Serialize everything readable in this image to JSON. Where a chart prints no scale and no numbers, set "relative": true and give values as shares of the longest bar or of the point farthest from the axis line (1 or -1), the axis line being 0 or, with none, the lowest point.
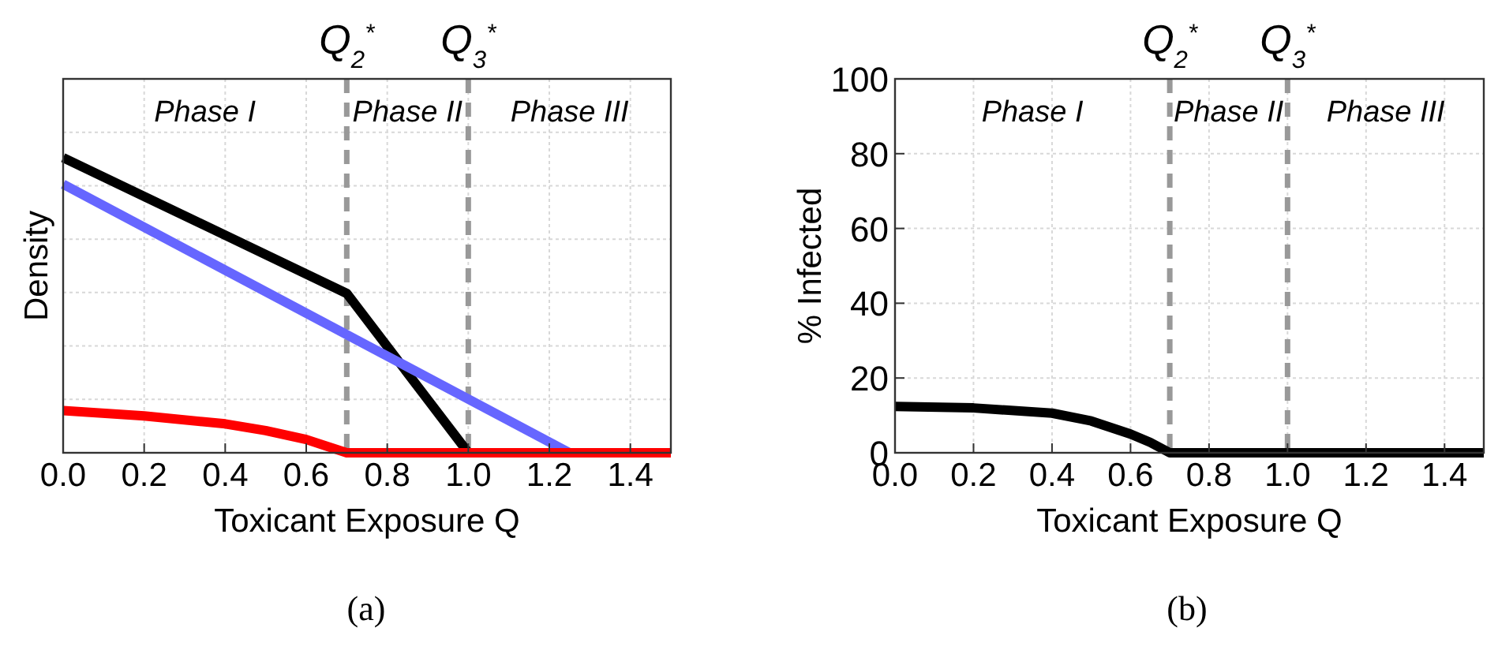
{
  "chart_data": [
    {
      "type": "line",
      "title": "(a)",
      "xlabel": "Toxicant Exposure Q",
      "ylabel": "Density",
      "relative": true,
      "xlim": [
        0,
        1.5
      ],
      "xticks": [
        {
          "value": 0,
          "label": "0.0"
        },
        {
          "value": 0.2,
          "label": "0.2"
        },
        {
          "value": 0.4,
          "label": "0.4"
        },
        {
          "value": 0.6,
          "label": "0.6"
        },
        {
          "value": 0.8,
          "label": "0.8"
        },
        {
          "value": 1,
          "label": "1.0"
        },
        {
          "value": 1.2,
          "label": "1.2"
        },
        {
          "value": 1.4,
          "label": "1.4"
        }
      ],
      "grid": true,
      "marker": "none",
      "line_style": "solid",
      "series": [
        {
          "color": "#000000",
          "x": [
            0,
            0.7,
            1.0,
            1.5
          ],
          "values": [
            1,
            0.54,
            0,
            0
          ]
        },
        {
          "color": "#6666ff",
          "x": [
            0,
            1.25
          ],
          "values": [
            0.91,
            0
          ]
        },
        {
          "color": "#ff0000",
          "x": [
            0,
            0.2,
            0.4,
            0.5,
            0.6,
            0.7,
            1.5
          ],
          "values": [
            0.143,
            0.125,
            0.098,
            0.075,
            0.045,
            0,
            0
          ]
        }
      ],
      "ref_lines": [
        {
          "axis": "x",
          "value": 0.7,
          "label": "Q$_{2}$$^{*}$",
          "color": "#999999",
          "line_style": "dashed"
        },
        {
          "axis": "x",
          "value": 1.0,
          "label": "Q$_{3}$$^{*}$",
          "color": "#999999",
          "line_style": "dashed"
        }
      ],
      "annotations": [
        "Phase I",
        "Phase II",
        "Phase III"
      ]
    },
    {
      "type": "line",
      "title": "(b)",
      "xlabel": "Toxicant Exposure Q",
      "ylabel": "% Infected",
      "xlim": [
        0,
        1.5
      ],
      "ylim": [
        0,
        100
      ],
      "yticks": [
        0,
        20,
        40,
        60,
        80,
        100
      ],
      "xticks": [
        {
          "value": 0,
          "label": "0.0"
        },
        {
          "value": 0.2,
          "label": "0.2"
        },
        {
          "value": 0.4,
          "label": "0.4"
        },
        {
          "value": 0.6,
          "label": "0.6"
        },
        {
          "value": 0.8,
          "label": "0.8"
        },
        {
          "value": 1,
          "label": "1.0"
        },
        {
          "value": 1.2,
          "label": "1.2"
        },
        {
          "value": 1.4,
          "label": "1.4"
        }
      ],
      "grid": true,
      "marker": "none",
      "line_style": "solid",
      "series": [
        {
          "color": "#000000",
          "x": [
            0,
            0.2,
            0.4,
            0.5,
            0.6,
            0.65,
            0.7,
            1.5
          ],
          "values": [
            12.4,
            12,
            10.6,
            8.5,
            5,
            2.8,
            0,
            0
          ]
        }
      ],
      "ref_lines": [
        {
          "axis": "x",
          "value": 0.7,
          "label": "Q$_{2}$$^{*}$",
          "color": "#999999",
          "line_style": "dashed"
        },
        {
          "axis": "x",
          "value": 1.0,
          "label": "Q$_{3}$$^{*}$",
          "color": "#999999",
          "line_style": "dashed"
        }
      ],
      "annotations": [
        "Phase I",
        "Phase II",
        "Phase III"
      ]
    }
  ]
}
